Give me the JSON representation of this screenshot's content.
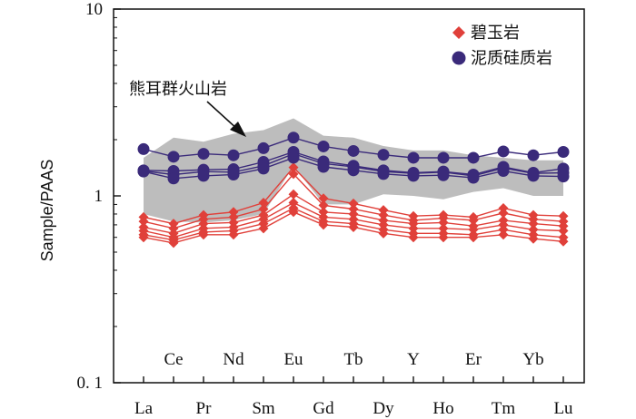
{
  "chart_data": {
    "type": "line",
    "title": "",
    "xlabel": "",
    "ylabel": "Sample/PAAS",
    "yscale": "log",
    "ylim": [
      0.1,
      10
    ],
    "ytick_labels": [
      "0. 1",
      "1",
      "10"
    ],
    "categories": [
      "La",
      "Ce",
      "Pr",
      "Nd",
      "Sm",
      "Eu",
      "Gd",
      "Tb",
      "Dy",
      "Y",
      "Ho",
      "Er",
      "Tm",
      "Yb",
      "Lu"
    ],
    "legend": {
      "position": "top-right",
      "entries": [
        {
          "label": "碧玉岩",
          "marker": "diamond",
          "color": "#e0403a"
        },
        {
          "label": "泥质硅质岩",
          "marker": "circle",
          "color": "#3a2a7a"
        }
      ]
    },
    "annotation": {
      "text": "熊耳群火山岩"
    },
    "band": {
      "name": "熊耳群火山岩",
      "color": "#bdbdbd",
      "upper": [
        1.6,
        2.05,
        1.95,
        2.15,
        2.25,
        2.6,
        2.1,
        2.05,
        1.85,
        1.75,
        1.75,
        1.65,
        1.6,
        1.55,
        1.55
      ],
      "lower": [
        0.8,
        0.73,
        0.72,
        0.74,
        0.8,
        1.45,
        0.9,
        0.9,
        1.02,
        1.0,
        0.96,
        1.05,
        1.1,
        1.0,
        1.0
      ]
    },
    "series_groups": [
      {
        "name": "碧玉岩",
        "marker": "diamond",
        "color": "#e0403a",
        "series": [
          {
            "values": [
              0.77,
              0.71,
              0.79,
              0.82,
              0.92,
              1.42,
              0.97,
              0.91,
              0.84,
              0.78,
              0.79,
              0.77,
              0.86,
              0.79,
              0.78
            ]
          },
          {
            "values": [
              0.73,
              0.67,
              0.75,
              0.77,
              0.85,
              1.31,
              0.89,
              0.85,
              0.79,
              0.74,
              0.76,
              0.74,
              0.81,
              0.75,
              0.73
            ]
          },
          {
            "values": [
              0.68,
              0.63,
              0.71,
              0.72,
              0.79,
              1.02,
              0.82,
              0.8,
              0.74,
              0.71,
              0.72,
              0.69,
              0.74,
              0.71,
              0.69
            ]
          },
          {
            "values": [
              0.65,
              0.6,
              0.67,
              0.68,
              0.75,
              0.92,
              0.77,
              0.75,
              0.7,
              0.67,
              0.67,
              0.66,
              0.7,
              0.66,
              0.65
            ]
          },
          {
            "values": [
              0.62,
              0.58,
              0.64,
              0.65,
              0.71,
              0.86,
              0.73,
              0.71,
              0.66,
              0.63,
              0.63,
              0.62,
              0.66,
              0.62,
              0.6
            ]
          },
          {
            "values": [
              0.6,
              0.56,
              0.62,
              0.62,
              0.67,
              0.82,
              0.7,
              0.68,
              0.63,
              0.6,
              0.6,
              0.6,
              0.62,
              0.59,
              0.57
            ]
          }
        ]
      },
      {
        "name": "泥质硅质岩",
        "marker": "circle",
        "color": "#3a2a7a",
        "series": [
          {
            "values": [
              1.78,
              1.62,
              1.68,
              1.65,
              1.8,
              2.05,
              1.84,
              1.74,
              1.66,
              1.6,
              1.6,
              1.6,
              1.73,
              1.65,
              1.72
            ]
          },
          {
            "values": [
              1.37,
              1.36,
              1.38,
              1.39,
              1.52,
              1.72,
              1.53,
              1.45,
              1.37,
              1.33,
              1.35,
              1.3,
              1.43,
              1.33,
              1.4
            ]
          },
          {
            "values": [
              1.36,
              1.3,
              1.35,
              1.34,
              1.45,
              1.68,
              1.49,
              1.43,
              1.35,
              1.32,
              1.34,
              1.28,
              1.41,
              1.32,
              1.33
            ]
          },
          {
            "values": [
              1.35,
              1.24,
              1.28,
              1.3,
              1.4,
              1.6,
              1.43,
              1.37,
              1.31,
              1.28,
              1.29,
              1.25,
              1.36,
              1.28,
              1.27
            ]
          }
        ]
      }
    ]
  }
}
